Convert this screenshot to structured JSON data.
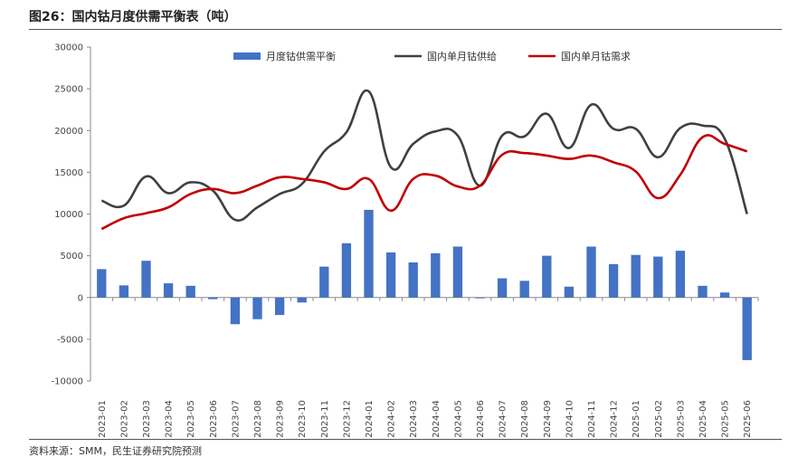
{
  "header": {
    "title": "图26：国内钴月度供需平衡表（吨）"
  },
  "footer": {
    "source": "资料来源：SMM，民生证券研究院预测"
  },
  "chart_data": {
    "type": "bar+line",
    "title": "图26：国内钴月度供需平衡表（吨）",
    "xlabel": "",
    "ylabel": "",
    "ylim": [
      -10000,
      30000
    ],
    "yticks": [
      -10000,
      -5000,
      0,
      5000,
      10000,
      15000,
      20000,
      25000,
      30000
    ],
    "grid": false,
    "legend_position": "top-center",
    "categories": [
      "2023-01",
      "2023-02",
      "2023-03",
      "2023-04",
      "2023-05",
      "2023-06",
      "2023-07",
      "2023-08",
      "2023-09",
      "2023-10",
      "2023-11",
      "2023-12",
      "2024-01",
      "2024-02",
      "2024-03",
      "2024-04",
      "2024-05",
      "2024-06",
      "2024-07",
      "2024-08",
      "2024-09",
      "2024-10",
      "2024-11",
      "2024-12",
      "2025-01",
      "2025-02",
      "2025-03",
      "2025-04",
      "2025-05",
      "2025-06"
    ],
    "series": [
      {
        "name": "月度钴供需平衡",
        "type": "bar",
        "color": "#4472C4",
        "values": [
          3400,
          1450,
          4400,
          1700,
          1400,
          -200,
          -3200,
          -2600,
          -2100,
          -600,
          3700,
          6500,
          10500,
          5400,
          4200,
          5300,
          6100,
          -100,
          2300,
          2000,
          5000,
          1300,
          6100,
          4000,
          5100,
          4900,
          5600,
          1400,
          600,
          -7500
        ]
      },
      {
        "name": "国内单月钴供给",
        "type": "line",
        "color": "#404040",
        "values": [
          11600,
          11000,
          14500,
          12500,
          13800,
          12800,
          9300,
          10800,
          12400,
          13600,
          17500,
          19800,
          24700,
          15600,
          18400,
          19900,
          19400,
          13400,
          19400,
          19300,
          22000,
          17900,
          23100,
          20200,
          20200,
          16800,
          20300,
          20600,
          19000,
          10000
        ]
      },
      {
        "name": "国内单月钴需求",
        "type": "line",
        "color": "#C00000",
        "values": [
          8200,
          9500,
          10100,
          10800,
          12400,
          13000,
          12500,
          13400,
          14400,
          14200,
          13800,
          13000,
          14200,
          10400,
          14200,
          14600,
          13300,
          13400,
          17100,
          17300,
          17000,
          16600,
          17000,
          16200,
          15100,
          11900,
          14700,
          19200,
          18400,
          17500
        ]
      }
    ]
  }
}
